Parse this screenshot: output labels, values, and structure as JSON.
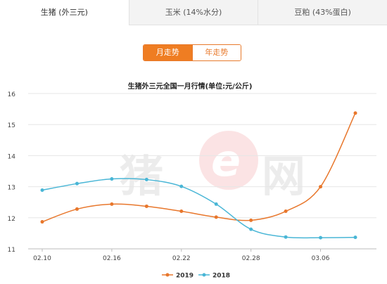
{
  "tabs": [
    {
      "label": "生猪 (外三元)",
      "active": true
    },
    {
      "label": "玉米 (14%水分)",
      "active": false
    },
    {
      "label": "豆粕 (43%蛋白)",
      "active": false
    }
  ],
  "toggle": {
    "month_label": "月走势",
    "year_label": "年走势",
    "active": "month"
  },
  "watermark": {
    "text1": "猪",
    "text2": "e",
    "text3": "网"
  },
  "colors": {
    "series_2019": "#e8772c",
    "series_2018": "#49b6d6",
    "accent": "#ef7d22"
  },
  "chart_data": {
    "type": "line",
    "title": "生猪外三元全国一月行情(单位:元/公斤)",
    "xlabel": "",
    "ylabel": "",
    "x_ticks": [
      "02.10",
      "02.16",
      "02.22",
      "02.28",
      "03.06"
    ],
    "ylim": [
      11,
      16
    ],
    "y_ticks": [
      11,
      12,
      13,
      14,
      15,
      16
    ],
    "grid": true,
    "legend_position": "bottom-center",
    "series": [
      {
        "name": "2019",
        "color": "#e8772c",
        "values": [
          11.87,
          12.28,
          12.44,
          12.37,
          12.21,
          12.02,
          11.92,
          12.21,
          13.0,
          15.37
        ]
      },
      {
        "name": "2018",
        "color": "#49b6d6",
        "values": [
          12.89,
          13.1,
          13.25,
          13.23,
          13.01,
          12.44,
          11.63,
          11.38,
          11.36,
          11.37
        ]
      }
    ]
  }
}
